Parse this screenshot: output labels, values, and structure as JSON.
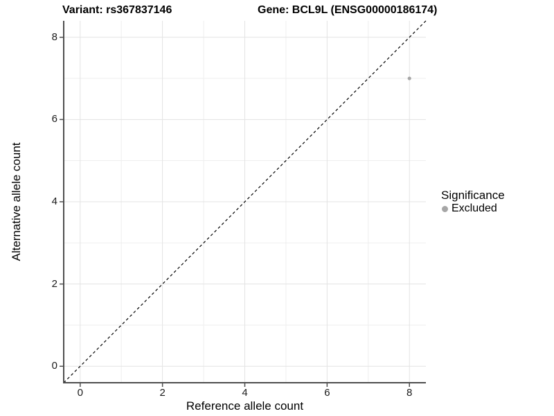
{
  "figure": {
    "title_left": "Variant: rs367837146",
    "title_right": "Gene: BCL9L (ENSG00000186174)"
  },
  "chart_data": {
    "type": "scatter",
    "title_left": "Variant: rs367837146",
    "title_right": "Gene: BCL9L (ENSG00000186174)",
    "xlabel": "Reference allele count",
    "ylabel": "Alternative allele count",
    "xlim": [
      -0.4,
      8.4
    ],
    "ylim": [
      -0.4,
      8.4
    ],
    "x_ticks": [
      0,
      2,
      4,
      6,
      8
    ],
    "y_ticks": [
      0,
      2,
      4,
      6,
      8
    ],
    "x_minor_gridlines": [
      1,
      3,
      5,
      7
    ],
    "y_minor_gridlines": [
      1,
      3,
      5,
      7
    ],
    "grid": "on",
    "identity_line": {
      "equation": "y = x",
      "style": "dashed",
      "from": [
        -0.4,
        -0.4
      ],
      "to": [
        8.4,
        8.4
      ]
    },
    "series": [
      {
        "name": "Excluded",
        "points": [
          {
            "x": 8,
            "y": 7
          }
        ]
      }
    ],
    "legend": {
      "title": "Significance",
      "position": "right",
      "entries": [
        {
          "label": "Excluded"
        }
      ]
    }
  },
  "colors": {
    "background": "#ffffff",
    "grid_major": "#e3e3e3",
    "grid_minor": "#eeeeee",
    "axis_line": "#4d4d4d",
    "tick_mark": "#4d4d4d",
    "identity_line": "#000000",
    "point": "#a6a6a6",
    "legend_swatch": "#a6a6a6",
    "text": "#000000"
  }
}
